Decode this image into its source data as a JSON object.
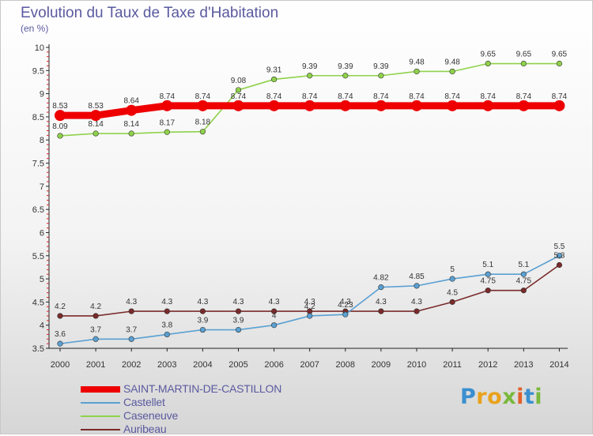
{
  "header": {
    "title": "Evolution du Taux de Taxe d'Habitation",
    "subtitle": "(en %)"
  },
  "brand": {
    "letters": [
      {
        "ch": "P",
        "color": "#3a8fd0"
      },
      {
        "ch": "r",
        "color": "#e9a21b"
      },
      {
        "ch": "o",
        "color": "#e9a21b"
      },
      {
        "ch": "x",
        "color": "#7ab83c"
      },
      {
        "ch": "i",
        "color": "#e25f2a"
      },
      {
        "ch": "t",
        "color": "#3a8fd0"
      },
      {
        "ch": "i",
        "color": "#7ab83c"
      }
    ]
  },
  "chart_data": {
    "type": "line",
    "title": "Evolution du Taux de Taxe d'Habitation",
    "ylabel": "(en %)",
    "xlabel": "",
    "ylim": [
      3.5,
      10
    ],
    "yticks": [
      "3.5",
      "4",
      "4.5",
      "5",
      "5.5",
      "6",
      "6.5",
      "7",
      "7.5",
      "8",
      "8.5",
      "9",
      "9.5",
      "10"
    ],
    "x": [
      "2000",
      "2001",
      "2002",
      "2003",
      "2004",
      "2005",
      "2006",
      "2007",
      "2008",
      "2009",
      "2010",
      "2011",
      "2012",
      "2013",
      "2014"
    ],
    "grid": false,
    "legend_position": "bottom-left",
    "series": [
      {
        "name": "SAINT-MARTIN-DE-CASTILLON",
        "color": "#ee0000",
        "values": [
          8.53,
          8.53,
          8.64,
          8.74,
          8.74,
          8.74,
          8.74,
          8.74,
          8.74,
          8.74,
          8.74,
          8.74,
          8.74,
          8.74,
          8.74
        ],
        "labels": [
          "8.53",
          "8.53",
          "8.64",
          "8.74",
          "8.74",
          "8.74",
          "8.74",
          "8.74",
          "8.74",
          "8.74",
          "8.74",
          "8.74",
          "8.74",
          "8.74",
          "8.74"
        ]
      },
      {
        "name": "Castellet",
        "color": "#5aa0d2",
        "values": [
          3.6,
          3.7,
          3.7,
          3.8,
          3.9,
          3.9,
          4,
          4.2,
          4.23,
          4.82,
          4.85,
          5,
          5.1,
          5.1,
          5.5
        ],
        "labels": [
          "3.6",
          "3.7",
          "3.7",
          "3.8",
          "3.9",
          "3.9",
          "4",
          "4.2",
          "4.23",
          "4.82",
          "4.85",
          "5",
          "5.1",
          "5.1",
          "5.5"
        ]
      },
      {
        "name": "Caseneuve",
        "color": "#8fd24a",
        "values": [
          8.09,
          8.14,
          8.14,
          8.17,
          8.18,
          9.08,
          9.31,
          9.39,
          9.39,
          9.39,
          9.48,
          9.48,
          9.65,
          9.65,
          9.65
        ],
        "labels": [
          "8.09",
          "8.14",
          "8.14",
          "8.17",
          "8.18",
          "9.08",
          "9.31",
          "9.39",
          "9.39",
          "9.39",
          "9.48",
          "9.48",
          "9.65",
          "9.65",
          "9.65"
        ]
      },
      {
        "name": "Auribeau",
        "color": "#7a2a2a",
        "values": [
          4.2,
          4.2,
          4.3,
          4.3,
          4.3,
          4.3,
          4.3,
          4.3,
          4.3,
          4.3,
          4.3,
          4.5,
          4.75,
          4.75,
          5.3
        ],
        "labels": [
          "4.2",
          "4.2",
          "4.3",
          "4.3",
          "4.3",
          "4.3",
          "4.3",
          "4.3",
          "4.3",
          "4.3",
          "4.3",
          "4.5",
          "4.75",
          "4.75",
          "5.3"
        ]
      }
    ]
  }
}
